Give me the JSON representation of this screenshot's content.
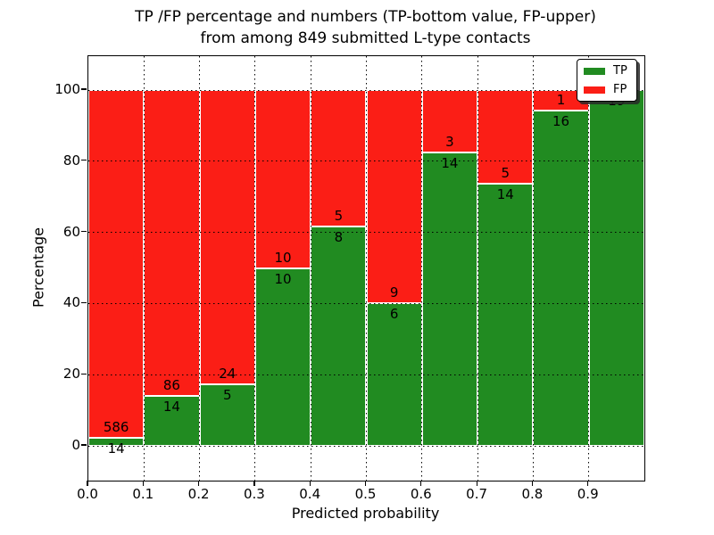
{
  "title": {
    "line1": "TP /FP percentage and numbers (TP-bottom value, FP-upper)",
    "line2": "from among 849 submitted L-type contacts"
  },
  "axes": {
    "xlabel": "Predicted probability",
    "ylabel": "Percentage"
  },
  "legend": {
    "position": "upper right",
    "items": [
      {
        "label": "TP",
        "color": "#218b21"
      },
      {
        "label": "FP",
        "color": "#fb1e16"
      }
    ]
  },
  "chart_data": {
    "type": "bar",
    "stacked": true,
    "normalized_to_percent": 100,
    "title": "TP /FP percentage and numbers (TP-bottom value, FP-upper) from among 849 submitted L-type contacts",
    "xlabel": "Predicted probability",
    "ylabel": "Percentage",
    "bin_start": [
      0.0,
      0.1,
      0.2,
      0.3,
      0.4,
      0.5,
      0.6,
      0.7,
      0.8,
      0.9
    ],
    "bin_width": 0.1,
    "series": [
      {
        "name": "TP",
        "color": "#218b21",
        "counts": [
          14,
          14,
          5,
          10,
          8,
          6,
          14,
          14,
          16,
          19
        ]
      },
      {
        "name": "FP",
        "color": "#fb1e16",
        "counts": [
          586,
          86,
          24,
          10,
          5,
          9,
          3,
          5,
          1,
          0
        ]
      }
    ],
    "tp_percent": [
      2.33,
      14.0,
      17.24,
      50.0,
      61.54,
      40.0,
      82.35,
      73.68,
      94.12,
      100.0
    ],
    "xtick_labels": [
      "0.0",
      "0.1",
      "0.2",
      "0.3",
      "0.4",
      "0.5",
      "0.6",
      "0.7",
      "0.8",
      "0.9"
    ],
    "ytick_values": [
      0,
      20,
      40,
      60,
      80,
      100
    ],
    "ylim": [
      -10,
      110
    ],
    "xlim": [
      0.0,
      1.0
    ],
    "grid": "dotted",
    "bar_edge_color": "#ffffff",
    "legend_position": "upper right"
  }
}
